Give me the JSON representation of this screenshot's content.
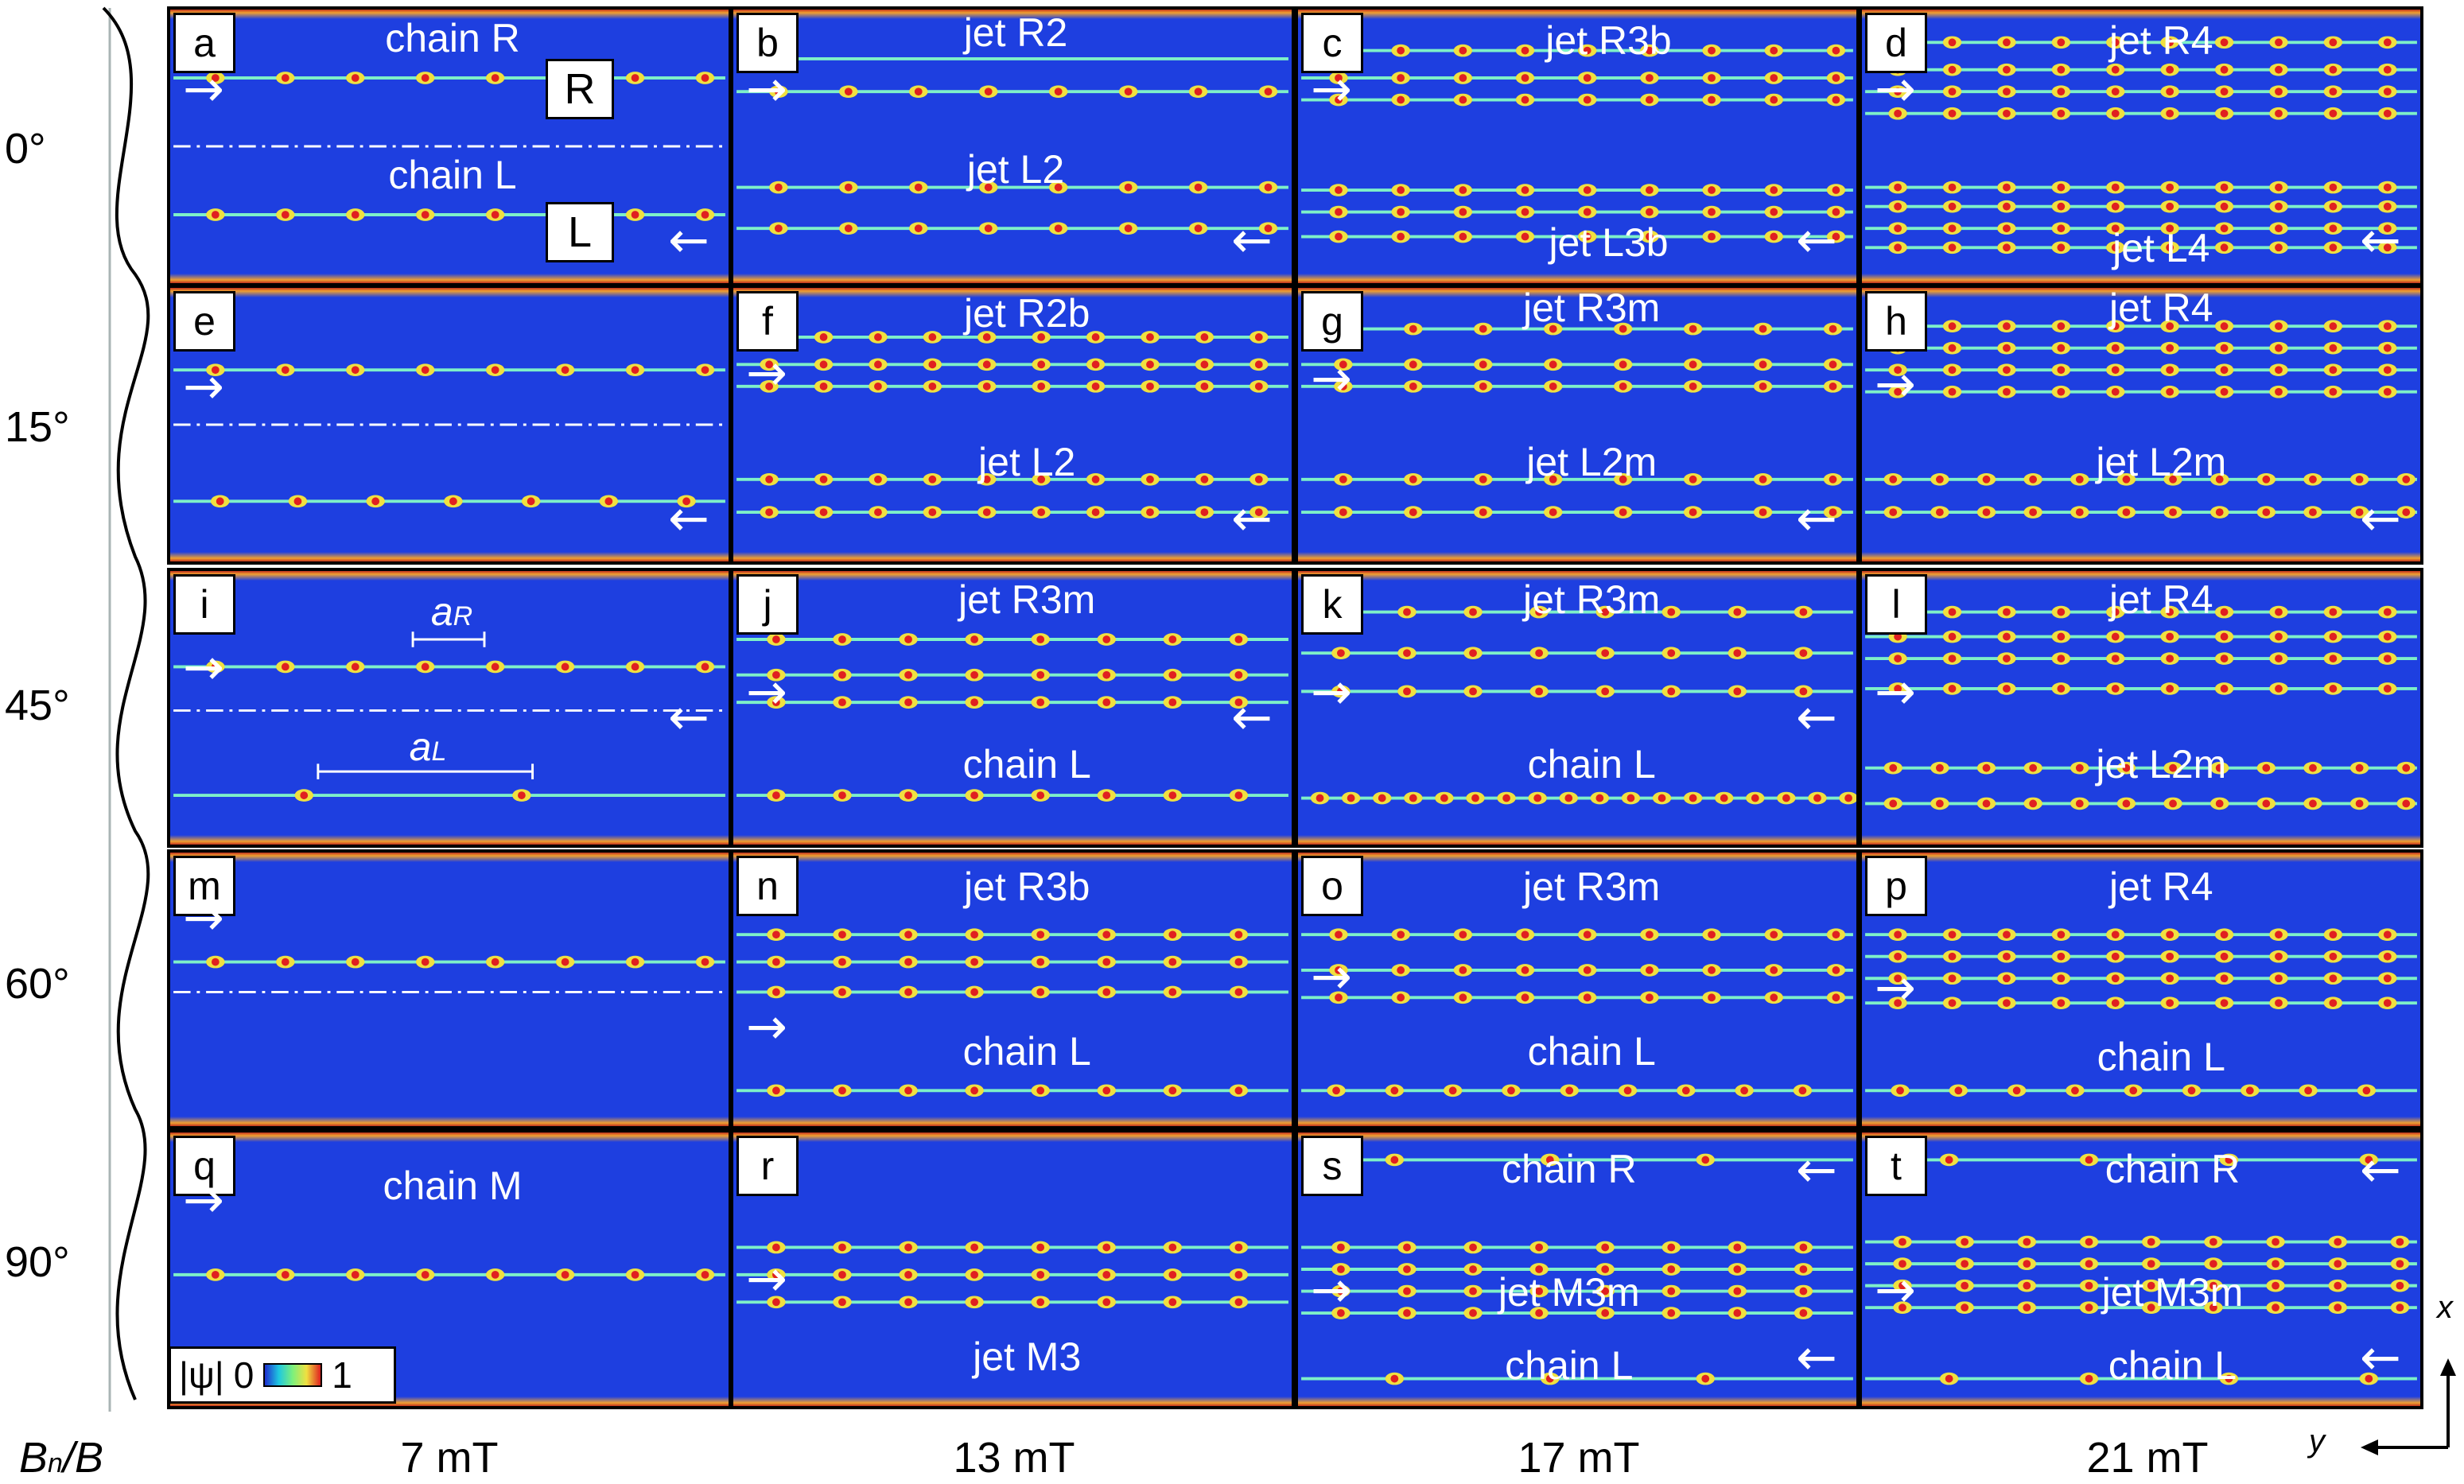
{
  "figure": {
    "row_labels": [
      "0°",
      "15°",
      "45°",
      "60°",
      "90°"
    ],
    "column_labels": [
      "7 mT",
      "13 mT",
      "17 mT",
      "21 mT"
    ],
    "row_axis_label": "B",
    "row_axis_label_sub": "n",
    "row_axis_label_tail": "/B",
    "legend": {
      "symbol": "|ψ|",
      "min": "0",
      "max": "1"
    },
    "axes": {
      "x": "x",
      "y": "y"
    },
    "side_labels": {
      "R": "R",
      "L": "L"
    },
    "distance_labels": {
      "aR": "a",
      "aR_sub": "R",
      "aL": "a",
      "aL_sub": "L"
    }
  },
  "panels": [
    {
      "letter": "a",
      "labels": [
        "chain R",
        "chain L"
      ]
    },
    {
      "letter": "b",
      "labels": [
        "jet R2",
        "jet L2"
      ]
    },
    {
      "letter": "c",
      "labels": [
        "jet R3b",
        "jet L3b"
      ]
    },
    {
      "letter": "d",
      "labels": [
        "jet R4",
        "jet L4"
      ]
    },
    {
      "letter": "e",
      "labels": []
    },
    {
      "letter": "f",
      "labels": [
        "jet R2b",
        "jet L2"
      ]
    },
    {
      "letter": "g",
      "labels": [
        "jet R3m",
        "jet L2m"
      ]
    },
    {
      "letter": "h",
      "labels": [
        "jet R4",
        "jet L2m"
      ]
    },
    {
      "letter": "i",
      "labels": []
    },
    {
      "letter": "j",
      "labels": [
        "jet R3m",
        "chain L"
      ]
    },
    {
      "letter": "k",
      "labels": [
        "jet R3m",
        "chain L"
      ]
    },
    {
      "letter": "l",
      "labels": [
        "jet R4",
        "jet L2m"
      ]
    },
    {
      "letter": "m",
      "labels": []
    },
    {
      "letter": "n",
      "labels": [
        "jet R3b",
        "chain L"
      ]
    },
    {
      "letter": "o",
      "labels": [
        "jet R3m",
        "chain L"
      ]
    },
    {
      "letter": "p",
      "labels": [
        "jet R4",
        "chain L"
      ]
    },
    {
      "letter": "q",
      "labels": [
        "chain M"
      ]
    },
    {
      "letter": "r",
      "labels": [
        "jet M3"
      ]
    },
    {
      "letter": "s",
      "labels": [
        "chain R",
        "jet M3m",
        "chain L"
      ]
    },
    {
      "letter": "t",
      "labels": [
        "chain R",
        "jet M3m",
        "chain L"
      ]
    }
  ],
  "colors": {
    "background": "#1e3fe0",
    "vortex_core": "#e02020",
    "vortex_halo": "#f0e040",
    "jet": "#7ef0c8"
  }
}
